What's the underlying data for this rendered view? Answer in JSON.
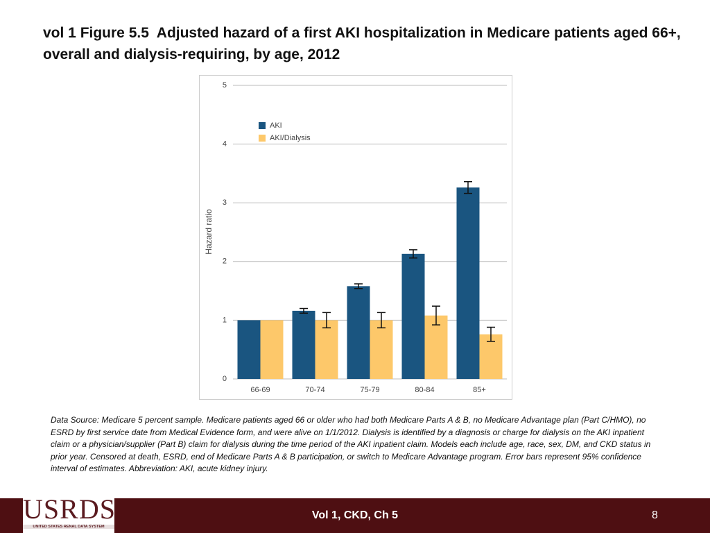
{
  "slide_title": "vol 1 Figure 5.5  Adjusted hazard of a first AKI hospitalization in Medicare patients aged 66+, overall and dialysis-requiring, by age, 2012",
  "chart_data": {
    "type": "bar",
    "y_label": "Hazard ratio",
    "categories": [
      "66-69",
      "70-74",
      "75-79",
      "80-84",
      "85+"
    ],
    "series": [
      {
        "name": "AKI",
        "color": "#1a5580",
        "values": [
          1.0,
          1.16,
          1.58,
          2.13,
          3.26
        ],
        "errors": [
          null,
          0.04,
          0.04,
          0.07,
          0.1
        ]
      },
      {
        "name": "AKI/Dialysis",
        "color": "#fdc86a",
        "values": [
          1.0,
          1.0,
          1.0,
          1.08,
          0.76
        ],
        "errors": [
          null,
          0.13,
          0.13,
          0.16,
          0.12
        ]
      }
    ],
    "ylim": [
      0,
      5
    ],
    "yticks": [
      0,
      1,
      2,
      3,
      4,
      5
    ],
    "grid": true,
    "legend": "upper left"
  },
  "footnote": "Data Source: Medicare 5 percent sample. Medicare patients aged 66 or older who had both Medicare Parts A & B, no Medicare Advantage plan (Part C/HMO), no ESRD by first service date from Medical Evidence form, and were alive on 1/1/2012. Dialysis is identified by a diagnosis or charge for dialysis on the AKI inpatient claim or a physician/supplier (Part B) claim for dialysis during the time period of the AKI inpatient claim. Models each include age, race, sex, DM, and CKD status in prior year. Censored at death, ESRD, end of Medicare Parts A & B participation, or switch to Medicare Advantage program. Error bars represent 95% confidence interval of estimates. Abbreviation: AKI, acute kidney injury.",
  "footer": {
    "text": "Vol 1, CKD, Ch 5",
    "page": "8",
    "logo": {
      "name": "USRDS",
      "subtitle": "UNITED STATES RENAL DATA SYSTEM"
    }
  }
}
